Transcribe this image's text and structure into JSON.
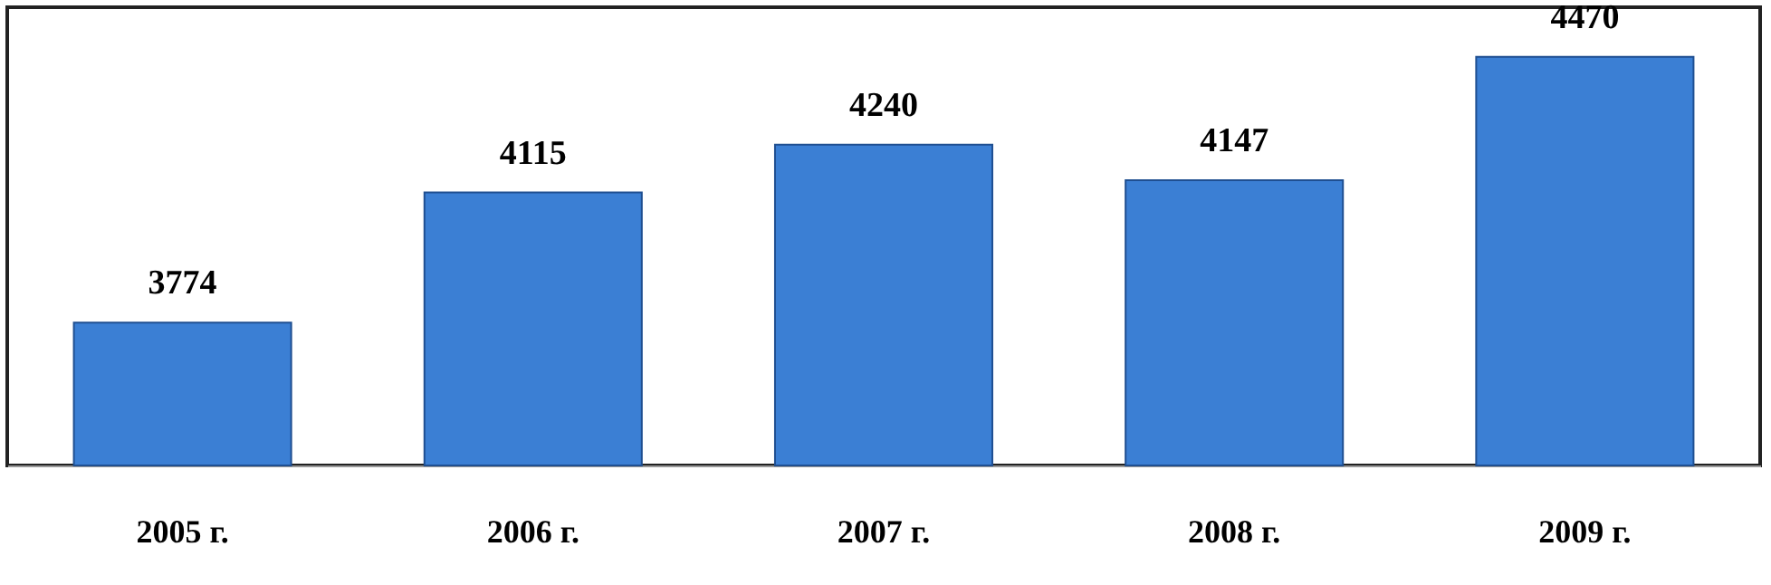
{
  "chart_data": {
    "type": "bar",
    "categories": [
      "2005 г.",
      "2006 г.",
      "2007 г.",
      "2008 г.",
      "2009 г."
    ],
    "values": [
      3774,
      4115,
      4240,
      4147,
      4470
    ],
    "color": "#3b7fd4",
    "ylim": [
      3400,
      4600
    ],
    "data_labels": true,
    "tick_labels": "x",
    "grid": false
  }
}
